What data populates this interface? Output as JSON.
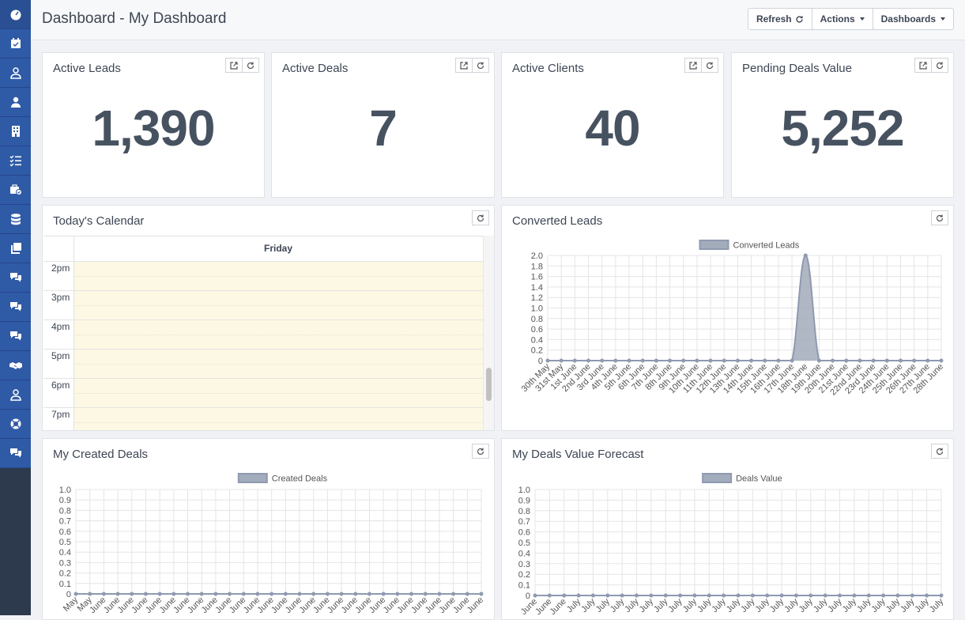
{
  "sidebar": {
    "items": [
      {
        "icon": "dashboard-icon"
      },
      {
        "icon": "calendar-check-icon"
      },
      {
        "icon": "user-outline-icon"
      },
      {
        "icon": "user-icon"
      },
      {
        "icon": "building-icon"
      },
      {
        "icon": "tasks-icon"
      },
      {
        "icon": "briefcase-check-icon"
      },
      {
        "icon": "database-icon"
      },
      {
        "icon": "clone-icon"
      },
      {
        "icon": "comments-icon"
      },
      {
        "icon": "comments-icon"
      },
      {
        "icon": "comments-icon"
      },
      {
        "icon": "handshake-icon"
      },
      {
        "icon": "user-outline-icon"
      },
      {
        "icon": "life-ring-icon"
      },
      {
        "icon": "comments-icon"
      }
    ]
  },
  "header": {
    "title": "Dashboard - My Dashboard",
    "buttons": {
      "refresh": "Refresh",
      "actions": "Actions",
      "dashboards": "Dashboards"
    }
  },
  "stats": [
    {
      "title": "Active Leads",
      "value": "1,390"
    },
    {
      "title": "Active Deals",
      "value": "7"
    },
    {
      "title": "Active Clients",
      "value": "40"
    },
    {
      "title": "Pending Deals Value",
      "value": "5,252"
    }
  ],
  "calendar": {
    "title": "Today's Calendar",
    "day": "Friday",
    "hours": [
      "2pm",
      "3pm",
      "4pm",
      "5pm",
      "6pm",
      "7pm"
    ]
  },
  "charts_panels": {
    "converted": {
      "title": "Converted Leads"
    },
    "created": {
      "title": "My Created Deals"
    },
    "forecast": {
      "title": "My Deals Value Forecast"
    }
  },
  "chart_data": [
    {
      "type": "area",
      "legend": "Converted Leads",
      "ylim": [
        0,
        2.0
      ],
      "yticks": [
        "2.0",
        "1.8",
        "1.6",
        "1.4",
        "1.2",
        "1.0",
        "0.8",
        "0.6",
        "0.4",
        "0.2",
        "0"
      ],
      "categories": [
        "30th May",
        "31st May",
        "1st June",
        "2nd June",
        "3rd June",
        "4th June",
        "5th June",
        "6th June",
        "7th June",
        "8th June",
        "9th June",
        "10th June",
        "11th June",
        "12th June",
        "13th June",
        "14th June",
        "15th June",
        "16th June",
        "17th June",
        "18th June",
        "19th June",
        "20th June",
        "21st June",
        "22nd June",
        "23rd June",
        "24th June",
        "25th June",
        "26th June",
        "27th June",
        "28th June"
      ],
      "values": [
        0,
        0,
        0,
        0,
        0,
        0,
        0,
        0,
        0,
        0,
        0,
        0,
        0,
        0,
        0,
        0,
        0,
        0,
        0,
        2,
        0,
        0,
        0,
        0,
        0,
        0,
        0,
        0,
        0,
        0
      ],
      "colors": {
        "fill": "#a3acbb",
        "stroke": "#8f9ab0"
      }
    },
    {
      "type": "area",
      "legend": "Created Deals",
      "ylim": [
        0,
        1.0
      ],
      "yticks": [
        "1.0",
        "0.9",
        "0.8",
        "0.7",
        "0.6",
        "0.5",
        "0.4",
        "0.3",
        "0.2",
        "0.1",
        "0"
      ],
      "categories": [
        "May",
        "May",
        "June",
        "June",
        "June",
        "June",
        "June",
        "June",
        "June",
        "June",
        "June",
        "June",
        "June",
        "June",
        "June",
        "June",
        "June",
        "June",
        "June",
        "June",
        "June",
        "June",
        "June",
        "June",
        "June",
        "June",
        "June",
        "June",
        "June",
        "June"
      ],
      "values": [
        0,
        0,
        0,
        0,
        0,
        0,
        0,
        0,
        0,
        0,
        0,
        0,
        0,
        0,
        0,
        0,
        0,
        0,
        0,
        0,
        0,
        0,
        0,
        0,
        0,
        0,
        0,
        0,
        0,
        0
      ],
      "colors": {
        "fill": "#a3acbb",
        "stroke": "#8f9ab0"
      }
    },
    {
      "type": "area",
      "legend": "Deals Value",
      "ylim": [
        0,
        1.0
      ],
      "yticks": [
        "1.0",
        "0.9",
        "0.8",
        "0.7",
        "0.6",
        "0.5",
        "0.4",
        "0.3",
        "0.2",
        "0.1",
        "0"
      ],
      "categories": [
        "June",
        "June",
        "June",
        "July",
        "July",
        "July",
        "July",
        "July",
        "July",
        "July",
        "July",
        "July",
        "July",
        "July",
        "July",
        "July",
        "July",
        "July",
        "July",
        "July",
        "July",
        "July",
        "July",
        "July",
        "July",
        "July",
        "July",
        "July",
        "July"
      ],
      "values": [
        0,
        0,
        0,
        0,
        0,
        0,
        0,
        0,
        0,
        0,
        0,
        0,
        0,
        0,
        0,
        0,
        0,
        0,
        0,
        0,
        0,
        0,
        0,
        0,
        0,
        0,
        0,
        0,
        0
      ],
      "colors": {
        "fill": "#a3acbb",
        "stroke": "#8f9ab0"
      }
    }
  ]
}
